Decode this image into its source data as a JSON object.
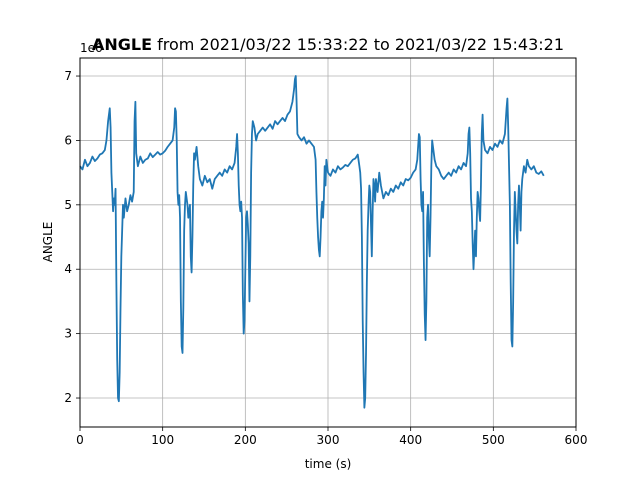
{
  "chart_data": {
    "type": "line",
    "title_bold": "ANGLE",
    "title_rest": " from 2021/03/22 15:33:22 to 2021/03/22 15:43:21",
    "xlabel": "time (s)",
    "ylabel": "ANGLE",
    "y_offset_label": "1e6",
    "xlim": [
      0,
      600
    ],
    "ylim": [
      1.55,
      7.28
    ],
    "x_ticks": [
      0,
      100,
      200,
      300,
      400,
      500,
      600
    ],
    "y_ticks": [
      2,
      3,
      4,
      5,
      6,
      7
    ],
    "grid": true,
    "line_color": "#1f77b4",
    "series": [
      {
        "points": [
          [
            0,
            5.6
          ],
          [
            3,
            5.55
          ],
          [
            6,
            5.7
          ],
          [
            9,
            5.6
          ],
          [
            12,
            5.65
          ],
          [
            15,
            5.75
          ],
          [
            18,
            5.68
          ],
          [
            21,
            5.72
          ],
          [
            24,
            5.78
          ],
          [
            27,
            5.8
          ],
          [
            30,
            5.85
          ],
          [
            32,
            6.0
          ],
          [
            34,
            6.3
          ],
          [
            36,
            6.5
          ],
          [
            37,
            6.2
          ],
          [
            38,
            5.5
          ],
          [
            39,
            5.2
          ],
          [
            40,
            4.9
          ],
          [
            41,
            5.1
          ],
          [
            42,
            5.0
          ],
          [
            43,
            5.25
          ],
          [
            44,
            3.8
          ],
          [
            45,
            2.6
          ],
          [
            46,
            2.0
          ],
          [
            47,
            1.95
          ],
          [
            48,
            2.4
          ],
          [
            49,
            3.4
          ],
          [
            50,
            4.2
          ],
          [
            51,
            4.6
          ],
          [
            52,
            5.0
          ],
          [
            53,
            4.8
          ],
          [
            55,
            5.1
          ],
          [
            57,
            4.9
          ],
          [
            59,
            5.0
          ],
          [
            61,
            5.15
          ],
          [
            63,
            5.05
          ],
          [
            65,
            5.2
          ],
          [
            66,
            6.3
          ],
          [
            67,
            6.6
          ],
          [
            68,
            5.8
          ],
          [
            70,
            5.6
          ],
          [
            73,
            5.75
          ],
          [
            76,
            5.65
          ],
          [
            79,
            5.7
          ],
          [
            82,
            5.72
          ],
          [
            85,
            5.8
          ],
          [
            88,
            5.74
          ],
          [
            91,
            5.78
          ],
          [
            94,
            5.82
          ],
          [
            97,
            5.78
          ],
          [
            100,
            5.8
          ],
          [
            103,
            5.84
          ],
          [
            106,
            5.9
          ],
          [
            109,
            5.95
          ],
          [
            112,
            6.0
          ],
          [
            114,
            6.2
          ],
          [
            115,
            6.5
          ],
          [
            116,
            6.45
          ],
          [
            117,
            6.0
          ],
          [
            118,
            5.2
          ],
          [
            119,
            5.0
          ],
          [
            120,
            5.15
          ],
          [
            121,
            4.8
          ],
          [
            122,
            3.5
          ],
          [
            123,
            2.8
          ],
          [
            124,
            2.7
          ],
          [
            125,
            3.4
          ],
          [
            126,
            4.6
          ],
          [
            127,
            5.0
          ],
          [
            128,
            5.2
          ],
          [
            130,
            5.0
          ],
          [
            131,
            4.8
          ],
          [
            132,
            4.9
          ],
          [
            133,
            5.0
          ],
          [
            134,
            4.2
          ],
          [
            135,
            3.95
          ],
          [
            136,
            4.5
          ],
          [
            137,
            5.3
          ],
          [
            138,
            5.8
          ],
          [
            139,
            5.7
          ],
          [
            141,
            5.9
          ],
          [
            143,
            5.6
          ],
          [
            145,
            5.4
          ],
          [
            148,
            5.3
          ],
          [
            151,
            5.45
          ],
          [
            154,
            5.35
          ],
          [
            157,
            5.4
          ],
          [
            160,
            5.25
          ],
          [
            163,
            5.4
          ],
          [
            166,
            5.45
          ],
          [
            169,
            5.5
          ],
          [
            172,
            5.45
          ],
          [
            175,
            5.55
          ],
          [
            178,
            5.5
          ],
          [
            181,
            5.6
          ],
          [
            184,
            5.55
          ],
          [
            187,
            5.65
          ],
          [
            189,
            5.9
          ],
          [
            190,
            6.1
          ],
          [
            191,
            5.8
          ],
          [
            192,
            5.3
          ],
          [
            193,
            5.0
          ],
          [
            194,
            4.9
          ],
          [
            195,
            5.05
          ],
          [
            196,
            4.8
          ],
          [
            197,
            3.6
          ],
          [
            198,
            3.0
          ],
          [
            199,
            3.2
          ],
          [
            200,
            4.0
          ],
          [
            201,
            4.8
          ],
          [
            202,
            4.9
          ],
          [
            203,
            4.7
          ],
          [
            204,
            4.4
          ],
          [
            205,
            3.5
          ],
          [
            206,
            4.2
          ],
          [
            207,
            5.5
          ],
          [
            208,
            6.1
          ],
          [
            209,
            6.3
          ],
          [
            211,
            6.2
          ],
          [
            213,
            6.0
          ],
          [
            215,
            6.1
          ],
          [
            218,
            6.15
          ],
          [
            221,
            6.2
          ],
          [
            224,
            6.15
          ],
          [
            227,
            6.2
          ],
          [
            230,
            6.25
          ],
          [
            233,
            6.18
          ],
          [
            236,
            6.3
          ],
          [
            239,
            6.25
          ],
          [
            242,
            6.3
          ],
          [
            245,
            6.35
          ],
          [
            248,
            6.3
          ],
          [
            251,
            6.4
          ],
          [
            254,
            6.45
          ],
          [
            257,
            6.6
          ],
          [
            259,
            6.8
          ],
          [
            260,
            6.95
          ],
          [
            261,
            7.0
          ],
          [
            262,
            6.6
          ],
          [
            263,
            6.1
          ],
          [
            265,
            6.05
          ],
          [
            268,
            6.0
          ],
          [
            271,
            6.05
          ],
          [
            274,
            5.95
          ],
          [
            277,
            6.0
          ],
          [
            280,
            5.95
          ],
          [
            283,
            5.9
          ],
          [
            285,
            5.7
          ],
          [
            286,
            5.2
          ],
          [
            287,
            4.8
          ],
          [
            288,
            4.5
          ],
          [
            289,
            4.3
          ],
          [
            290,
            4.2
          ],
          [
            291,
            4.5
          ],
          [
            292,
            4.9
          ],
          [
            293,
            5.05
          ],
          [
            294,
            4.8
          ],
          [
            295,
            5.1
          ],
          [
            296,
            5.6
          ],
          [
            297,
            5.3
          ],
          [
            298,
            5.7
          ],
          [
            300,
            5.5
          ],
          [
            303,
            5.45
          ],
          [
            306,
            5.55
          ],
          [
            309,
            5.5
          ],
          [
            312,
            5.6
          ],
          [
            315,
            5.55
          ],
          [
            318,
            5.58
          ],
          [
            321,
            5.62
          ],
          [
            324,
            5.6
          ],
          [
            327,
            5.65
          ],
          [
            330,
            5.7
          ],
          [
            333,
            5.72
          ],
          [
            336,
            5.78
          ],
          [
            338,
            5.6
          ],
          [
            339,
            5.5
          ],
          [
            340,
            5.25
          ],
          [
            341,
            4.5
          ],
          [
            342,
            3.2
          ],
          [
            343,
            2.4
          ],
          [
            344,
            1.85
          ],
          [
            345,
            2.0
          ],
          [
            346,
            2.7
          ],
          [
            347,
            3.8
          ],
          [
            348,
            4.6
          ],
          [
            349,
            5.0
          ],
          [
            350,
            5.3
          ],
          [
            351,
            5.2
          ],
          [
            352,
            4.7
          ],
          [
            353,
            4.2
          ],
          [
            354,
            4.9
          ],
          [
            355,
            5.4
          ],
          [
            356,
            5.3
          ],
          [
            357,
            5.05
          ],
          [
            358,
            5.4
          ],
          [
            360,
            5.2
          ],
          [
            362,
            5.5
          ],
          [
            364,
            5.3
          ],
          [
            367,
            5.1
          ],
          [
            370,
            5.2
          ],
          [
            373,
            5.15
          ],
          [
            376,
            5.25
          ],
          [
            379,
            5.2
          ],
          [
            382,
            5.3
          ],
          [
            385,
            5.25
          ],
          [
            388,
            5.35
          ],
          [
            391,
            5.3
          ],
          [
            394,
            5.4
          ],
          [
            397,
            5.38
          ],
          [
            400,
            5.42
          ],
          [
            403,
            5.5
          ],
          [
            406,
            5.55
          ],
          [
            408,
            5.7
          ],
          [
            410,
            6.1
          ],
          [
            411,
            6.05
          ],
          [
            412,
            5.4
          ],
          [
            413,
            5.0
          ],
          [
            414,
            4.9
          ],
          [
            415,
            5.2
          ],
          [
            416,
            4.1
          ],
          [
            417,
            3.3
          ],
          [
            418,
            2.9
          ],
          [
            419,
            3.5
          ],
          [
            420,
            4.8
          ],
          [
            421,
            5.0
          ],
          [
            422,
            4.5
          ],
          [
            423,
            4.2
          ],
          [
            424,
            4.8
          ],
          [
            425,
            5.6
          ],
          [
            426,
            6.0
          ],
          [
            427,
            5.9
          ],
          [
            429,
            5.7
          ],
          [
            431,
            5.6
          ],
          [
            434,
            5.55
          ],
          [
            437,
            5.45
          ],
          [
            440,
            5.4
          ],
          [
            443,
            5.45
          ],
          [
            446,
            5.5
          ],
          [
            449,
            5.45
          ],
          [
            452,
            5.55
          ],
          [
            455,
            5.5
          ],
          [
            458,
            5.6
          ],
          [
            461,
            5.55
          ],
          [
            464,
            5.65
          ],
          [
            467,
            5.6
          ],
          [
            469,
            5.8
          ],
          [
            470,
            6.1
          ],
          [
            471,
            6.2
          ],
          [
            472,
            5.8
          ],
          [
            473,
            5.1
          ],
          [
            474,
            4.9
          ],
          [
            475,
            4.4
          ],
          [
            476,
            4.0
          ],
          [
            477,
            4.3
          ],
          [
            478,
            4.6
          ],
          [
            479,
            4.2
          ],
          [
            480,
            4.8
          ],
          [
            481,
            5.2
          ],
          [
            482,
            5.1
          ],
          [
            483,
            4.9
          ],
          [
            484,
            4.75
          ],
          [
            485,
            5.3
          ],
          [
            486,
            6.1
          ],
          [
            487,
            6.4
          ],
          [
            488,
            6.0
          ],
          [
            490,
            5.85
          ],
          [
            493,
            5.8
          ],
          [
            496,
            5.9
          ],
          [
            499,
            5.85
          ],
          [
            502,
            5.95
          ],
          [
            505,
            5.9
          ],
          [
            508,
            6.0
          ],
          [
            511,
            5.95
          ],
          [
            514,
            6.1
          ],
          [
            516,
            6.5
          ],
          [
            517,
            6.65
          ],
          [
            518,
            6.2
          ],
          [
            519,
            5.6
          ],
          [
            520,
            5.0
          ],
          [
            521,
            3.8
          ],
          [
            522,
            2.9
          ],
          [
            523,
            2.8
          ],
          [
            524,
            3.5
          ],
          [
            525,
            4.6
          ],
          [
            526,
            5.2
          ],
          [
            527,
            4.9
          ],
          [
            528,
            4.6
          ],
          [
            529,
            4.4
          ],
          [
            530,
            5.0
          ],
          [
            531,
            5.3
          ],
          [
            532,
            5.0
          ],
          [
            533,
            4.6
          ],
          [
            534,
            5.2
          ],
          [
            535,
            5.4
          ],
          [
            537,
            5.6
          ],
          [
            539,
            5.5
          ],
          [
            541,
            5.7
          ],
          [
            543,
            5.6
          ],
          [
            546,
            5.55
          ],
          [
            549,
            5.6
          ],
          [
            552,
            5.5
          ],
          [
            555,
            5.48
          ],
          [
            558,
            5.52
          ],
          [
            561,
            5.45
          ]
        ]
      }
    ]
  }
}
